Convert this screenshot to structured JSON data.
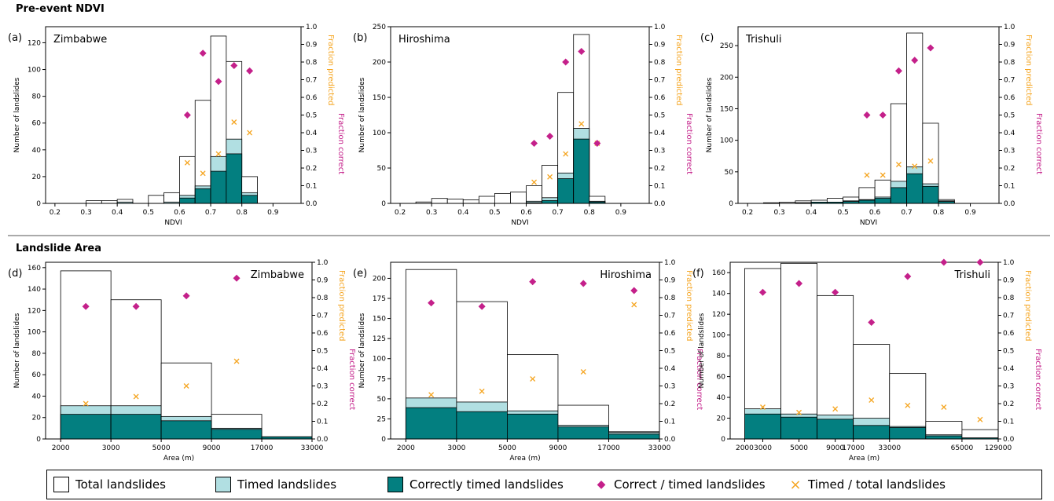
{
  "sections": {
    "top": "Pre-event NDVI",
    "bottom": "Landslide Area"
  },
  "colors": {
    "timed": "#b1dfe2",
    "correct": "#037f80",
    "frac_correct": "#c4208a",
    "frac_pred": "#f5a623"
  },
  "legend": {
    "total": "Total landslides",
    "timed": "Timed landslides",
    "correct": "Correctly timed landslides",
    "frac_correct": "Correct / timed landslides",
    "frac_pred": "Timed / total landslides",
    "diamond": "◆",
    "cross": "×"
  },
  "chart_data": [
    {
      "id": "a",
      "type": "bar",
      "label": "(a)",
      "site": "Zimbabwe",
      "xlabel": "NDVI",
      "ylabel": "Number of landslides",
      "ylabel_right": [
        "Fraction predicted",
        "Fraction correct"
      ],
      "xlim": [
        0.17,
        0.99
      ],
      "ylim": [
        0,
        132
      ],
      "y2lim": [
        0,
        1
      ],
      "xticks": [
        0.2,
        0.3,
        0.4,
        0.5,
        0.6,
        0.7,
        0.8,
        0.9
      ],
      "xtick_labels": [
        "0.2",
        "0.3",
        "0.4",
        "0.5",
        "0.6",
        "0.7",
        "0.8",
        "0.9"
      ],
      "yticks": [
        0,
        20,
        40,
        60,
        80,
        100,
        120
      ],
      "y2ticks": [
        0,
        0.1,
        0.2,
        0.3,
        0.4,
        0.5,
        0.6,
        0.7,
        0.8,
        0.9,
        1.0
      ],
      "bins": [
        [
          0.3,
          0.35
        ],
        [
          0.35,
          0.4
        ],
        [
          0.4,
          0.45
        ],
        [
          0.45,
          0.5
        ],
        [
          0.5,
          0.55
        ],
        [
          0.55,
          0.6
        ],
        [
          0.6,
          0.65
        ],
        [
          0.65,
          0.7
        ],
        [
          0.7,
          0.75
        ],
        [
          0.75,
          0.8
        ],
        [
          0.8,
          0.85
        ]
      ],
      "total": [
        2,
        2,
        3,
        0,
        6,
        8,
        35,
        77,
        125,
        106,
        20
      ],
      "timed": [
        0,
        0,
        1,
        0,
        0,
        1,
        6,
        13,
        35,
        48,
        8
      ],
      "correct": [
        0,
        0,
        0,
        0,
        0,
        0,
        4,
        11,
        24,
        37,
        6
      ],
      "fc_x": [
        0.625,
        0.675,
        0.725,
        0.775,
        0.825
      ],
      "fc_y": [
        0.5,
        0.85,
        0.69,
        0.78,
        0.75
      ],
      "fp_x": [
        0.625,
        0.675,
        0.725,
        0.775,
        0.825
      ],
      "fp_y": [
        0.23,
        0.17,
        0.28,
        0.46,
        0.4
      ]
    },
    {
      "id": "b",
      "type": "bar",
      "label": "(b)",
      "site": "Hiroshima",
      "xlabel": "NDVI",
      "ylabel": "Number of landslides",
      "ylabel_right": [
        "Fraction predicted",
        "Fraction correct"
      ],
      "xlim": [
        0.17,
        0.99
      ],
      "ylim": [
        0,
        250
      ],
      "y2lim": [
        0,
        1
      ],
      "xticks": [
        0.2,
        0.3,
        0.4,
        0.5,
        0.6,
        0.7,
        0.8,
        0.9
      ],
      "xtick_labels": [
        "0.2",
        "0.3",
        "0.4",
        "0.5",
        "0.6",
        "0.7",
        "0.8",
        "0.9"
      ],
      "yticks": [
        0,
        50,
        100,
        150,
        200,
        250
      ],
      "y2ticks": [
        0,
        0.1,
        0.2,
        0.3,
        0.4,
        0.5,
        0.6,
        0.7,
        0.8,
        0.9,
        1.0
      ],
      "bins": [
        [
          0.25,
          0.3
        ],
        [
          0.3,
          0.35
        ],
        [
          0.35,
          0.4
        ],
        [
          0.4,
          0.45
        ],
        [
          0.45,
          0.5
        ],
        [
          0.5,
          0.55
        ],
        [
          0.55,
          0.6
        ],
        [
          0.6,
          0.65
        ],
        [
          0.65,
          0.7
        ],
        [
          0.7,
          0.75
        ],
        [
          0.75,
          0.8
        ],
        [
          0.8,
          0.85
        ]
      ],
      "total": [
        2,
        7,
        6,
        5,
        10,
        14,
        16,
        25,
        54,
        157,
        239,
        10
      ],
      "timed": [
        0,
        0,
        0,
        0,
        0,
        0,
        0,
        3,
        8,
        43,
        106,
        3
      ],
      "correct": [
        0,
        0,
        0,
        0,
        0,
        0,
        0,
        1,
        4,
        35,
        91,
        2
      ],
      "fc_x": [
        0.625,
        0.675,
        0.725,
        0.775,
        0.825
      ],
      "fc_y": [
        0.34,
        0.38,
        0.8,
        0.86,
        0.34
      ],
      "fp_x": [
        0.625,
        0.675,
        0.725,
        0.775,
        0.825
      ],
      "fp_y": [
        0.12,
        0.15,
        0.28,
        0.45,
        0.34
      ]
    },
    {
      "id": "c",
      "type": "bar",
      "label": "(c)",
      "site": "Trishuli",
      "xlabel": "NDVI",
      "ylabel": "Number of landslides",
      "ylabel_right": [
        "Fraction predicted",
        "Fraction correct"
      ],
      "xlim": [
        0.17,
        0.99
      ],
      "ylim": [
        0,
        280
      ],
      "y2lim": [
        0,
        1
      ],
      "xticks": [
        0.2,
        0.3,
        0.4,
        0.5,
        0.6,
        0.7,
        0.8,
        0.9
      ],
      "xtick_labels": [
        "0.2",
        "0.3",
        "0.4",
        "0.5",
        "0.6",
        "0.7",
        "0.8",
        "0.9"
      ],
      "yticks": [
        0,
        50,
        100,
        150,
        200,
        250
      ],
      "y2ticks": [
        0,
        0.1,
        0.2,
        0.3,
        0.4,
        0.5,
        0.6,
        0.7,
        0.8,
        0.9,
        1.0
      ],
      "bins": [
        [
          0.25,
          0.3
        ],
        [
          0.3,
          0.35
        ],
        [
          0.35,
          0.4
        ],
        [
          0.4,
          0.45
        ],
        [
          0.45,
          0.5
        ],
        [
          0.5,
          0.55
        ],
        [
          0.55,
          0.6
        ],
        [
          0.6,
          0.65
        ],
        [
          0.65,
          0.7
        ],
        [
          0.7,
          0.75
        ],
        [
          0.75,
          0.8
        ],
        [
          0.8,
          0.85
        ]
      ],
      "total": [
        1,
        2,
        4,
        5,
        8,
        10,
        25,
        37,
        158,
        270,
        127,
        6
      ],
      "timed": [
        0,
        0,
        1,
        2,
        2,
        4,
        6,
        10,
        35,
        58,
        31,
        4
      ],
      "correct": [
        0,
        0,
        1,
        2,
        2,
        3,
        5,
        8,
        25,
        47,
        27,
        3
      ],
      "fc_x": [
        0.575,
        0.625,
        0.675,
        0.725,
        0.775
      ],
      "fc_y": [
        0.5,
        0.5,
        0.75,
        0.81,
        0.88
      ],
      "fp_x": [
        0.575,
        0.625,
        0.675,
        0.725,
        0.775
      ],
      "fp_y": [
        0.16,
        0.16,
        0.22,
        0.21,
        0.24
      ]
    },
    {
      "id": "d",
      "type": "bar",
      "label": "(d)",
      "site": "Zimbabwe",
      "xlabel": "Area (m)",
      "ylabel": "Number of landslides",
      "ylabel_right": [
        "Fraction predicted",
        "Fraction correct"
      ],
      "xlim": [
        -0.3,
        5.0
      ],
      "ylim": [
        0,
        165
      ],
      "y2lim": [
        0,
        1
      ],
      "xticks": [
        0,
        1,
        2,
        3,
        4,
        5
      ],
      "xtick_labels": [
        "2000",
        "3000",
        "5000",
        "9000",
        "17000",
        "33000"
      ],
      "yticks": [
        0,
        20,
        40,
        60,
        80,
        100,
        120,
        140,
        160
      ],
      "y2ticks": [
        0,
        0.1,
        0.2,
        0.3,
        0.4,
        0.5,
        0.6,
        0.7,
        0.8,
        0.9,
        1.0
      ],
      "bins": [
        [
          0,
          1
        ],
        [
          1,
          2
        ],
        [
          2,
          3
        ],
        [
          3,
          4
        ],
        [
          4,
          5
        ]
      ],
      "total": [
        157,
        130,
        71,
        23,
        2
      ],
      "timed": [
        31,
        31,
        21,
        10,
        2
      ],
      "correct": [
        23,
        23,
        17,
        9,
        2
      ],
      "fc_x": [
        0.5,
        1.5,
        2.5,
        3.5
      ],
      "fc_y": [
        0.75,
        0.75,
        0.81,
        0.91
      ],
      "fp_x": [
        0.5,
        1.5,
        2.5,
        3.5
      ],
      "fp_y": [
        0.2,
        0.24,
        0.3,
        0.44
      ]
    },
    {
      "id": "e",
      "type": "bar",
      "label": "(e)",
      "site": "Hiroshima",
      "xlabel": "Area (m)",
      "ylabel": "Number of landslides",
      "ylabel_right": [
        "Fraction predicted",
        "Fraction correct"
      ],
      "xlim": [
        -0.3,
        5.0
      ],
      "ylim": [
        0,
        220
      ],
      "y2lim": [
        0,
        1
      ],
      "xticks": [
        0,
        1,
        2,
        3,
        4,
        5
      ],
      "xtick_labels": [
        "2000",
        "3000",
        "5000",
        "9000",
        "17000",
        "33000"
      ],
      "yticks": [
        0,
        25,
        50,
        75,
        100,
        125,
        150,
        175,
        200
      ],
      "y2ticks": [
        0,
        0.1,
        0.2,
        0.3,
        0.4,
        0.5,
        0.6,
        0.7,
        0.8,
        0.9,
        1.0
      ],
      "bins": [
        [
          0,
          1
        ],
        [
          1,
          2
        ],
        [
          2,
          3
        ],
        [
          3,
          4
        ],
        [
          4,
          5
        ]
      ],
      "total": [
        211,
        171,
        105,
        42,
        9
      ],
      "timed": [
        51,
        46,
        35,
        17,
        8
      ],
      "correct": [
        39,
        34,
        31,
        15,
        6
      ],
      "fc_x": [
        0.5,
        1.5,
        2.5,
        3.5,
        4.5
      ],
      "fc_y": [
        0.77,
        0.75,
        0.89,
        0.88,
        0.84
      ],
      "fp_x": [
        0.5,
        1.5,
        2.5,
        3.5,
        4.5
      ],
      "fp_y": [
        0.25,
        0.27,
        0.34,
        0.38,
        0.76
      ]
    },
    {
      "id": "f",
      "type": "bar",
      "label": "(f)",
      "site": "Trishuli",
      "xlabel": "Area (m)",
      "ylabel": "Number of landslides",
      "ylabel_right": [
        "Fraction predicted",
        "Fraction correct"
      ],
      "xlim": [
        -0.4,
        7.0
      ],
      "ylim": [
        0,
        170
      ],
      "y2lim": [
        0,
        1
      ],
      "xticks": [
        0,
        0.5,
        1.5,
        3,
        4,
        6,
        7
      ],
      "xtick_labels": [
        "2000",
        "3000",
        "5000",
        "17000",
        "33000",
        "65000",
        "129000"
      ],
      "extra_xticks": [
        2.5
      ],
      "extra_xtick_labels": [
        "9000"
      ],
      "yticks": [
        0,
        20,
        40,
        60,
        80,
        100,
        120,
        140,
        160
      ],
      "y2ticks": [
        0,
        0.1,
        0.2,
        0.3,
        0.4,
        0.5,
        0.6,
        0.7,
        0.8,
        0.9,
        1.0
      ],
      "bins": [
        [
          0,
          1
        ],
        [
          1,
          2
        ],
        [
          2,
          3
        ],
        [
          3,
          4
        ],
        [
          4,
          5
        ],
        [
          5,
          6
        ],
        [
          6,
          7
        ]
      ],
      "total": [
        164,
        169,
        138,
        91,
        63,
        17,
        9
      ],
      "timed": [
        29,
        24,
        23,
        20,
        12,
        4,
        1
      ],
      "correct": [
        24,
        21,
        19,
        13,
        11,
        3,
        1
      ],
      "fc_x": [
        0.5,
        1.5,
        2.5,
        3.5,
        4.5,
        5.5,
        6.5
      ],
      "fc_y": [
        0.83,
        0.88,
        0.83,
        0.66,
        0.92,
        1.0,
        1.0
      ],
      "fp_x": [
        0.5,
        1.5,
        2.5,
        3.5,
        4.5,
        5.5,
        6.5
      ],
      "fp_y": [
        0.18,
        0.15,
        0.17,
        0.22,
        0.19,
        0.18,
        0.11
      ]
    }
  ]
}
